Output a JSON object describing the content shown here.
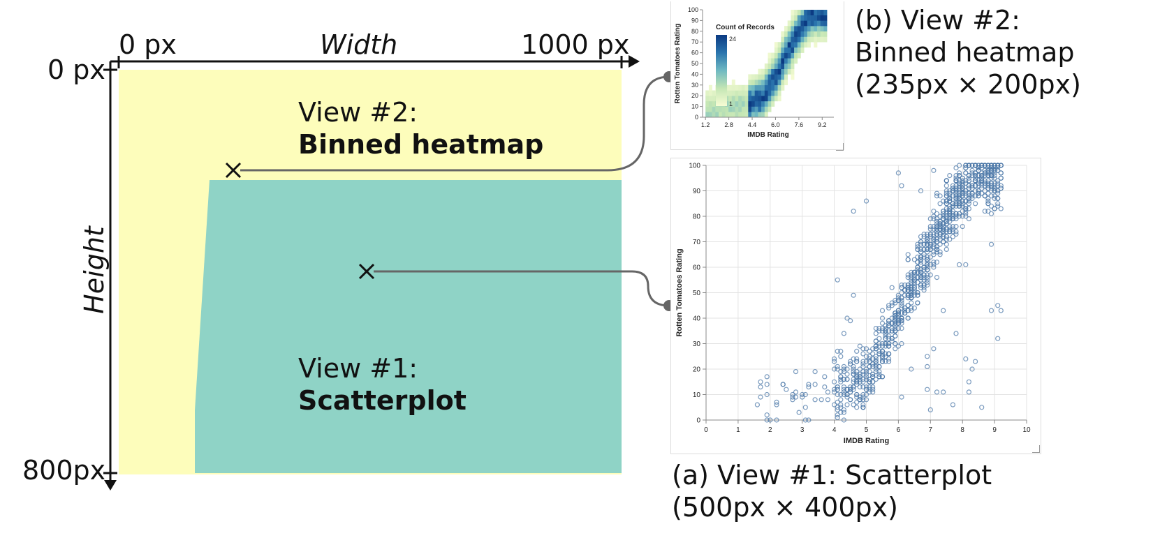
{
  "canvas": {
    "width_start": "0 px",
    "width_title": "Width",
    "width_end": "1000 px",
    "height_start": "0 px",
    "height_title": "Height",
    "height_end": "800px",
    "colors": {
      "heatmap_region": "#fdfdbb",
      "scatter_region": "#8fd3c6",
      "axis": "#111111",
      "connector": "#666666"
    }
  },
  "regions": {
    "view2": {
      "line1": "View  #2:",
      "line2": "Binned heatmap"
    },
    "view1": {
      "line1": "View  #1:",
      "line2": "Scatterplot"
    }
  },
  "captions": {
    "b_line1": "(b) View #2:",
    "b_line2": "Binned heatmap",
    "b_line3": "(235px × 200px)",
    "a_line1": "(a) View #1: Scatterplot",
    "a_line2": "(500px × 400px)"
  },
  "chart_data": [
    {
      "type": "heatmap",
      "xlabel": "IMDB Rating",
      "ylabel": "Rotten Tomatoes Rating",
      "x_ticks": [
        "1.2",
        "2.8",
        "4.4",
        "6.0",
        "7.6",
        "9.2"
      ],
      "y_ticks": [
        "0",
        "10",
        "20",
        "30",
        "40",
        "50",
        "60",
        "70",
        "80",
        "90",
        "100"
      ],
      "xlim": [
        1,
        10
      ],
      "ylim": [
        0,
        100
      ],
      "legend": {
        "title": "Count of Records",
        "max_label": "24",
        "min_label": "1",
        "min": 1,
        "max": 24,
        "colors": [
          "#f7fcd4",
          "#c4e6b4",
          "#6fb9c2",
          "#2a74ad",
          "#0b3a82"
        ]
      }
    },
    {
      "type": "scatter",
      "xlabel": "IMDB Rating",
      "ylabel": "Rotten Tomatoes Rating",
      "x_ticks": [
        "0",
        "1",
        "2",
        "3",
        "4",
        "5",
        "6",
        "7",
        "8",
        "9",
        "10"
      ],
      "y_ticks": [
        "0",
        "10",
        "20",
        "30",
        "40",
        "50",
        "60",
        "70",
        "80",
        "90",
        "100"
      ],
      "xlim": [
        0,
        10
      ],
      "ylim": [
        0,
        100
      ],
      "grid": true,
      "point_color": "#4c78a8",
      "trend": {
        "points": [
          [
            1.6,
            5
          ],
          [
            2.5,
            10
          ],
          [
            4.0,
            12
          ],
          [
            5.0,
            18
          ],
          [
            6.0,
            40
          ],
          [
            6.5,
            55
          ],
          [
            7.0,
            68
          ],
          [
            7.5,
            80
          ],
          [
            8.0,
            90
          ],
          [
            8.5,
            96
          ]
        ],
        "spread": 12
      },
      "approx_point_count": 1100
    }
  ]
}
